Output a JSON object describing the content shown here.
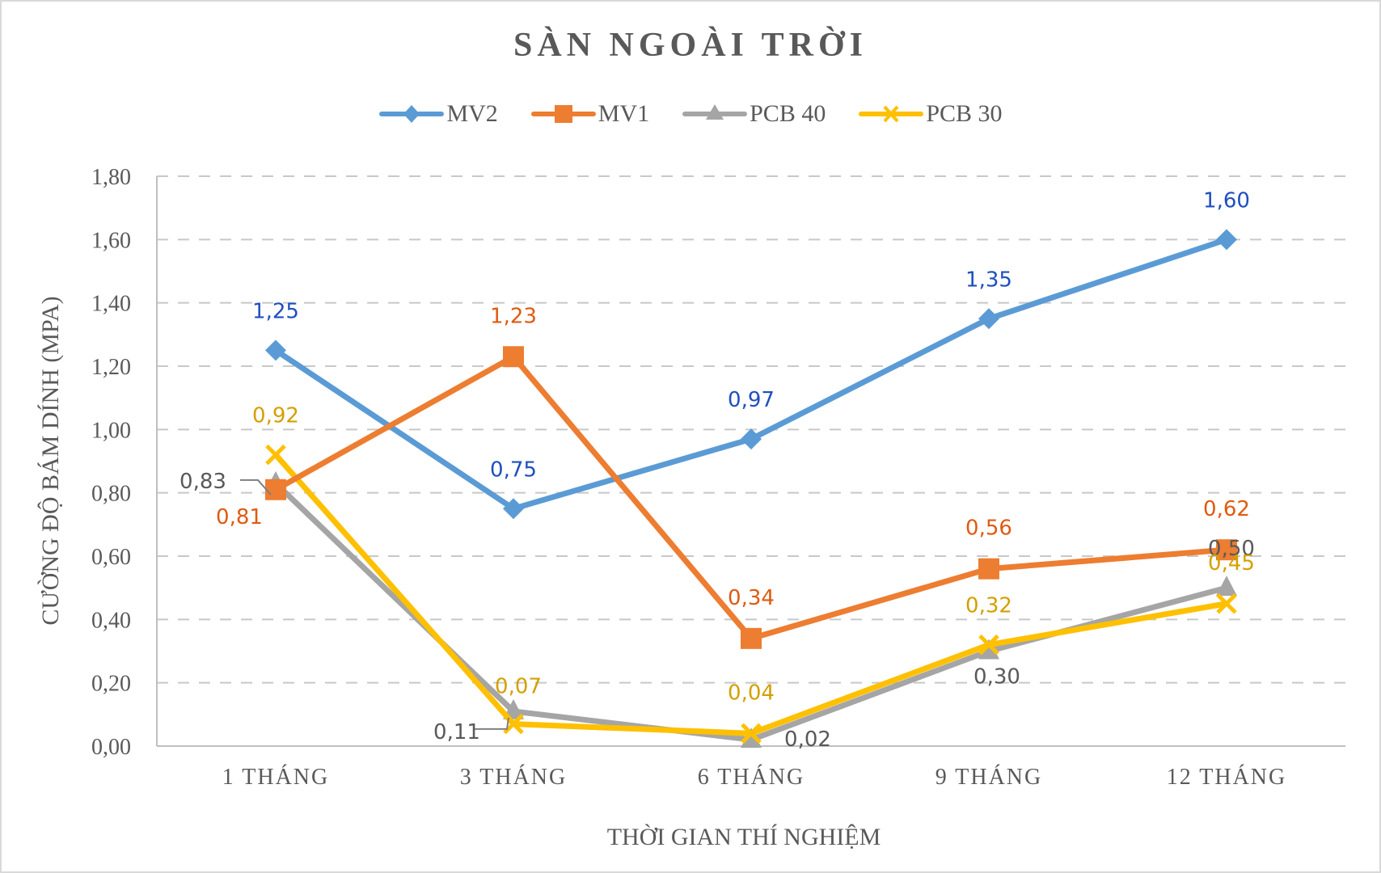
{
  "chart_data": {
    "type": "line",
    "title": "SÀN NGOÀI TRỜI",
    "xlabel": "THỜI GIAN THÍ NGHIỆM",
    "ylabel": "CƯỜNG ĐỘ BÁM DÍNH (MPA)",
    "categories": [
      "1 THÁNG",
      "3 THÁNG",
      "6 THÁNG",
      "9 THÁNG",
      "12 THÁNG"
    ],
    "ylim": [
      0,
      1.8
    ],
    "yticks": [
      "0,00",
      "0,20",
      "0,40",
      "0,60",
      "0,80",
      "1,00",
      "1,20",
      "1,40",
      "1,60",
      "1,80"
    ],
    "grid": "horizontal dashed",
    "legend_position": "top",
    "series": [
      {
        "name": "MV2",
        "color": "#5b9bd5",
        "label_color": "#1f4fbf",
        "marker": "diamond",
        "values": [
          1.25,
          0.75,
          0.97,
          1.35,
          1.6
        ],
        "labels": [
          "1,25",
          "0,75",
          "0,97",
          "1,35",
          "1,60"
        ]
      },
      {
        "name": "MV1",
        "color": "#ed7d31",
        "label_color": "#e05a10",
        "marker": "square",
        "values": [
          0.81,
          1.23,
          0.34,
          0.56,
          0.62
        ],
        "labels": [
          "0,81",
          "1,23",
          "0,34",
          "0,56",
          "0,62"
        ]
      },
      {
        "name": "PCB 40",
        "color": "#a5a5a5",
        "label_color": "#595959",
        "marker": "triangle",
        "values": [
          0.83,
          0.11,
          0.02,
          0.3,
          0.5
        ],
        "labels": [
          "0,83",
          "0,11",
          "0,02",
          "0,30",
          "0,50"
        ]
      },
      {
        "name": "PCB 30",
        "color": "#ffc000",
        "label_color": "#d4a000",
        "marker": "x",
        "values": [
          0.92,
          0.07,
          0.04,
          0.32,
          0.45
        ],
        "labels": [
          "0,92",
          "0,07",
          "0,04",
          "0,32",
          "0,45"
        ]
      }
    ]
  },
  "legend": {
    "items": [
      "MV2",
      "MV1",
      "PCB 40",
      "PCB 30"
    ]
  }
}
